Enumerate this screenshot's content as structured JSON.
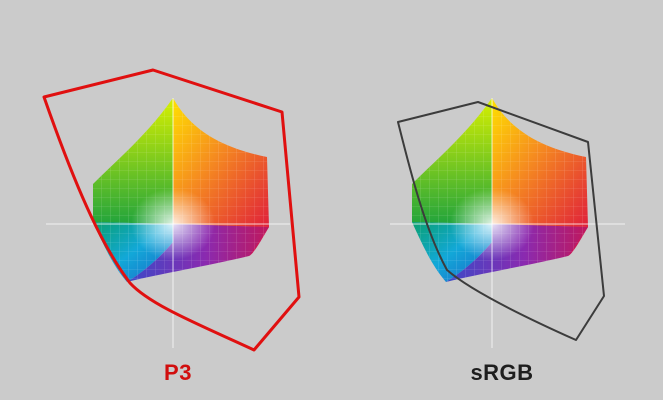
{
  "labels": {
    "left": "P3",
    "right": "sRGB"
  },
  "colors": {
    "background": "#cbcbcb",
    "left_label": "#d10e0e",
    "left_outline": "#e01010",
    "right_label": "#1e1e1e",
    "right_outline": "#3c3c3c",
    "axes": "#ffffff"
  }
}
